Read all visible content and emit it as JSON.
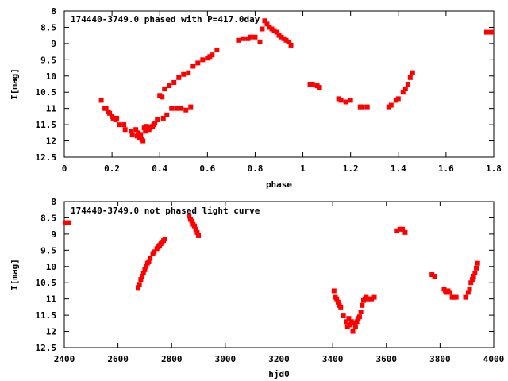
{
  "chart_data": [
    {
      "type": "scatter",
      "title": "174440-3749.0 phased with P=417.0day",
      "xlabel": "phase",
      "ylabel": "I[mag]",
      "xlim": [
        0,
        1.8
      ],
      "ylim": [
        12.5,
        8
      ],
      "y_inverted": true,
      "xticks": [
        "0",
        "0.2",
        "0.4",
        "0.6",
        "0.8",
        "1",
        "1.2",
        "1.4",
        "1.6",
        "1.8"
      ],
      "yticks": [
        "8",
        "8.5",
        "9",
        "9.5",
        "10",
        "10.5",
        "11",
        "11.5",
        "12",
        "12.5"
      ],
      "grid": false,
      "marker_color": "#ff0000",
      "series": [
        {
          "x": [
            0.155,
            0.17,
            0.175,
            0.185,
            0.19,
            0.2,
            0.205,
            0.215,
            0.22,
            0.23,
            0.25,
            0.255,
            0.28,
            0.285,
            0.3,
            0.305,
            0.31,
            0.315,
            0.32,
            0.325,
            0.33,
            0.335,
            0.34,
            0.345,
            0.35,
            0.355,
            0.36,
            0.37,
            0.375,
            0.38,
            0.39,
            0.4,
            0.41,
            0.415,
            0.42,
            0.43,
            0.44,
            0.45,
            0.46,
            0.47,
            0.48,
            0.49,
            0.5,
            0.51,
            0.52,
            0.53,
            0.54,
            0.56,
            0.58,
            0.6,
            0.61,
            0.62,
            0.64,
            0.73,
            0.75,
            0.77,
            0.78,
            0.8,
            0.82,
            0.83,
            0.84,
            0.85,
            0.86,
            0.87,
            0.88,
            0.89,
            0.9,
            0.91,
            0.92,
            0.93,
            0.94,
            0.95,
            1.03,
            1.04,
            1.06,
            1.07,
            1.15,
            1.16,
            1.18,
            1.2,
            1.24,
            1.25,
            1.27,
            1.36,
            1.37,
            1.39,
            1.4,
            1.42,
            1.43,
            1.44,
            1.45,
            1.46,
            1.77,
            1.79
          ],
          "y": [
            10.75,
            11.0,
            11.0,
            11.1,
            11.15,
            11.25,
            11.3,
            11.35,
            11.3,
            11.5,
            11.5,
            11.65,
            11.7,
            11.8,
            11.65,
            11.85,
            11.75,
            11.9,
            11.8,
            11.95,
            12.0,
            11.6,
            11.7,
            11.55,
            11.6,
            11.65,
            11.6,
            11.55,
            11.5,
            11.45,
            11.35,
            10.6,
            10.65,
            11.3,
            10.4,
            11.2,
            10.3,
            11.0,
            10.2,
            11.0,
            10.05,
            11.0,
            9.95,
            11.05,
            9.9,
            10.95,
            9.7,
            9.6,
            9.5,
            9.45,
            9.4,
            9.35,
            9.2,
            8.9,
            8.85,
            8.85,
            8.8,
            8.8,
            8.95,
            8.55,
            8.3,
            8.4,
            8.5,
            8.55,
            8.6,
            8.65,
            8.75,
            8.8,
            8.85,
            8.9,
            8.95,
            9.05,
            10.25,
            10.25,
            10.3,
            10.35,
            10.7,
            10.75,
            10.8,
            10.75,
            10.95,
            10.95,
            10.95,
            10.95,
            10.9,
            10.75,
            10.7,
            10.5,
            10.4,
            10.25,
            10.05,
            9.9,
            8.65,
            8.65
          ]
        }
      ]
    },
    {
      "type": "scatter",
      "title": "174440-3749.0 not phased light curve",
      "xlabel": "hjd0",
      "ylabel": "I[mag]",
      "xlim": [
        2400,
        4000
      ],
      "ylim": [
        12.5,
        8
      ],
      "y_inverted": true,
      "xticks": [
        "2400",
        "2600",
        "2800",
        "3000",
        "3200",
        "3400",
        "3600",
        "3800",
        "4000"
      ],
      "yticks": [
        "8",
        "8.5",
        "9",
        "9.5",
        "10",
        "10.5",
        "11",
        "11.5",
        "12",
        "12.5"
      ],
      "grid": false,
      "marker_color": "#ff0000",
      "series": [
        {
          "x": [
            2405,
            2415,
            2675,
            2680,
            2685,
            2690,
            2695,
            2700,
            2705,
            2710,
            2715,
            2720,
            2730,
            2735,
            2745,
            2750,
            2755,
            2760,
            2765,
            2770,
            2775,
            2865,
            2870,
            2875,
            2880,
            2885,
            2890,
            2895,
            2900,
            3405,
            3410,
            3415,
            3420,
            3425,
            3430,
            3440,
            3450,
            3455,
            3460,
            3465,
            3470,
            3475,
            3480,
            3485,
            3490,
            3495,
            3500,
            3505,
            3510,
            3515,
            3520,
            3525,
            3535,
            3545,
            3555,
            3640,
            3650,
            3660,
            3670,
            3770,
            3780,
            3815,
            3820,
            3825,
            3830,
            3835,
            3845,
            3850,
            3860,
            3895,
            3905,
            3910,
            3915,
            3920,
            3925,
            3930,
            3935,
            3940
          ],
          "y": [
            8.65,
            8.65,
            10.65,
            10.55,
            10.4,
            10.3,
            10.2,
            10.1,
            10.0,
            9.9,
            9.85,
            9.75,
            9.6,
            9.55,
            9.45,
            9.4,
            9.35,
            9.3,
            9.25,
            9.2,
            9.15,
            8.45,
            8.55,
            8.6,
            8.7,
            8.75,
            8.85,
            8.95,
            9.05,
            10.75,
            10.95,
            11.0,
            11.1,
            11.2,
            11.25,
            11.5,
            11.7,
            11.85,
            11.6,
            11.8,
            11.7,
            12.0,
            11.75,
            11.85,
            11.7,
            11.6,
            11.55,
            11.4,
            11.2,
            11.05,
            11.0,
            10.95,
            11.0,
            11.0,
            10.95,
            8.9,
            8.85,
            8.85,
            8.95,
            10.25,
            10.3,
            10.7,
            10.75,
            10.8,
            10.75,
            10.8,
            10.95,
            10.95,
            10.95,
            10.95,
            10.8,
            10.7,
            10.5,
            10.4,
            10.3,
            10.2,
            10.05,
            9.9
          ]
        }
      ]
    }
  ]
}
